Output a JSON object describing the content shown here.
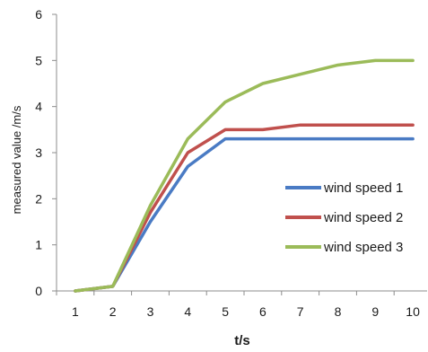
{
  "chart_data": {
    "type": "line",
    "title": "",
    "xlabel": "t/s",
    "ylabel": "measured value /m/s",
    "x": [
      1,
      2,
      3,
      4,
      5,
      6,
      7,
      8,
      9,
      10
    ],
    "xlim": [
      0.5,
      10.5
    ],
    "ylim": [
      0,
      6
    ],
    "yticks": [
      0,
      1,
      2,
      3,
      4,
      5,
      6
    ],
    "grid": false,
    "legend_position": "right",
    "series": [
      {
        "name": "wind speed 1",
        "color": "#4a7bc4",
        "values": [
          0,
          0.1,
          1.5,
          2.7,
          3.3,
          3.3,
          3.3,
          3.3,
          3.3,
          3.3
        ]
      },
      {
        "name": "wind speed 2",
        "color": "#c0504d",
        "values": [
          0,
          0.1,
          1.7,
          3.0,
          3.5,
          3.5,
          3.6,
          3.6,
          3.6,
          3.6
        ]
      },
      {
        "name": "wind speed 3",
        "color": "#9bbb59",
        "values": [
          0,
          0.1,
          1.85,
          3.3,
          4.1,
          4.5,
          4.7,
          4.9,
          5.0,
          5.0
        ]
      }
    ]
  }
}
